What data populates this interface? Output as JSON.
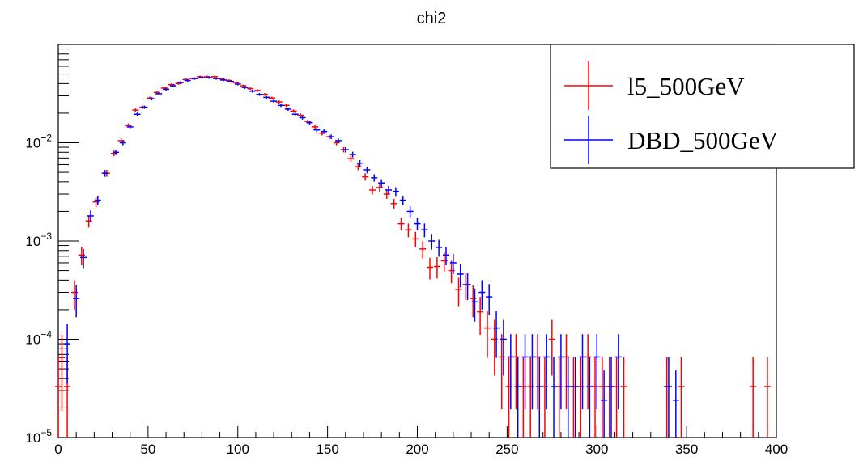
{
  "chart_data": {
    "type": "scatter",
    "title": "chi2",
    "xlabel": "",
    "ylabel": "",
    "xlim": [
      0,
      400
    ],
    "ylim": [
      1e-05,
      0.1
    ],
    "yscale": "log",
    "x_ticks": [
      0,
      50,
      100,
      150,
      200,
      250,
      300,
      350,
      400
    ],
    "y_ticks": [
      {
        "value": 1e-05,
        "base": "10",
        "exp": "−5"
      },
      {
        "value": 0.0001,
        "base": "10",
        "exp": "−4"
      },
      {
        "value": 0.001,
        "base": "10",
        "exp": "−3"
      },
      {
        "value": 0.01,
        "base": "10",
        "exp": "−2"
      }
    ],
    "legend_position": "top-right",
    "series": [
      {
        "name": "l5_500GeV",
        "color": "#ff0000",
        "points": [
          [
            0,
            3.3e-05
          ],
          [
            2,
            6.5e-05
          ],
          [
            5,
            3.3e-05
          ],
          [
            9,
            0.0003
          ],
          [
            13,
            0.00072
          ],
          [
            17,
            0.0016
          ],
          [
            21,
            0.0025
          ],
          [
            27,
            0.0049
          ],
          [
            31,
            0.0078
          ],
          [
            35,
            0.0105
          ],
          [
            39,
            0.015
          ],
          [
            43,
            0.0215
          ],
          [
            47,
            0.023
          ],
          [
            51,
            0.0285
          ],
          [
            55,
            0.0325
          ],
          [
            59,
            0.036
          ],
          [
            63,
            0.039
          ],
          [
            67,
            0.04
          ],
          [
            71,
            0.044
          ],
          [
            75,
            0.045
          ],
          [
            79,
            0.047
          ],
          [
            83,
            0.047
          ],
          [
            87,
            0.047
          ],
          [
            91,
            0.0445
          ],
          [
            95,
            0.043
          ],
          [
            99,
            0.041
          ],
          [
            103,
            0.038
          ],
          [
            107,
            0.0355
          ],
          [
            111,
            0.034
          ],
          [
            115,
            0.031
          ],
          [
            119,
            0.0285
          ],
          [
            123,
            0.026
          ],
          [
            127,
            0.024
          ],
          [
            131,
            0.021
          ],
          [
            135,
            0.019
          ],
          [
            139,
            0.0165
          ],
          [
            143,
            0.0145
          ],
          [
            147,
            0.0125
          ],
          [
            151,
            0.0115
          ],
          [
            155,
            0.01
          ],
          [
            159,
            0.0085
          ],
          [
            163,
            0.0069
          ],
          [
            167,
            0.0057
          ],
          [
            171,
            0.0045
          ],
          [
            175,
            0.0033
          ],
          [
            179,
            0.0035
          ],
          [
            183,
            0.003
          ],
          [
            187,
            0.0024
          ],
          [
            191,
            0.0015
          ],
          [
            195,
            0.0013
          ],
          [
            199,
            0.00105
          ],
          [
            203,
            0.00083
          ],
          [
            207,
            0.00054
          ],
          [
            211,
            0.00055
          ],
          [
            215,
            0.00063
          ],
          [
            219,
            0.0005
          ],
          [
            223,
            0.00032
          ],
          [
            227,
            0.00036
          ],
          [
            231,
            0.00026
          ],
          [
            235,
            0.00019
          ],
          [
            239,
            0.00013
          ],
          [
            243,
            0.0001
          ],
          [
            247,
            6.6e-05
          ],
          [
            251,
            3.3e-05
          ],
          [
            255,
            6.6e-05
          ],
          [
            259,
            3.3e-05
          ],
          [
            263,
            3.3e-05
          ],
          [
            267,
            6.6e-05
          ],
          [
            271,
            3.3e-05
          ],
          [
            275,
            0.0001
          ],
          [
            279,
            3.3e-05
          ],
          [
            283,
            6.6e-05
          ],
          [
            287,
            3.3e-05
          ],
          [
            291,
            3.3e-05
          ],
          [
            295,
            6.6e-05
          ],
          [
            299,
            3.3e-05
          ],
          [
            303,
            3.3e-05
          ],
          [
            307,
            3.3e-05
          ],
          [
            311,
            3.3e-05
          ],
          [
            315,
            3.3e-05
          ],
          [
            339,
            3.3e-05
          ],
          [
            347,
            3.3e-05
          ],
          [
            387,
            3.3e-05
          ],
          [
            395,
            3.3e-05
          ]
        ]
      },
      {
        "name": "DBD_500GeV",
        "color": "#0000ff",
        "points": [
          [
            5,
            9e-05
          ],
          [
            10,
            0.00026
          ],
          [
            14,
            0.00068
          ],
          [
            18,
            0.0018
          ],
          [
            22,
            0.0026
          ],
          [
            26,
            0.0049
          ],
          [
            32,
            0.008
          ],
          [
            36,
            0.01
          ],
          [
            40,
            0.0145
          ],
          [
            44,
            0.0195
          ],
          [
            48,
            0.023
          ],
          [
            52,
            0.028
          ],
          [
            56,
            0.0315
          ],
          [
            60,
            0.035
          ],
          [
            64,
            0.038
          ],
          [
            68,
            0.041
          ],
          [
            72,
            0.043
          ],
          [
            76,
            0.045
          ],
          [
            80,
            0.046
          ],
          [
            84,
            0.046
          ],
          [
            88,
            0.045
          ],
          [
            92,
            0.0435
          ],
          [
            96,
            0.042
          ],
          [
            100,
            0.0395
          ],
          [
            104,
            0.0365
          ],
          [
            108,
            0.0335
          ],
          [
            112,
            0.031
          ],
          [
            116,
            0.029
          ],
          [
            120,
            0.0265
          ],
          [
            124,
            0.024
          ],
          [
            128,
            0.022
          ],
          [
            132,
            0.0195
          ],
          [
            136,
            0.018
          ],
          [
            140,
            0.016
          ],
          [
            144,
            0.0135
          ],
          [
            148,
            0.013
          ],
          [
            152,
            0.0115
          ],
          [
            156,
            0.0105
          ],
          [
            160,
            0.0085
          ],
          [
            164,
            0.0076
          ],
          [
            168,
            0.0062
          ],
          [
            172,
            0.0053
          ],
          [
            176,
            0.0044
          ],
          [
            180,
            0.0039
          ],
          [
            184,
            0.0033
          ],
          [
            188,
            0.0032
          ],
          [
            192,
            0.0026
          ],
          [
            196,
            0.002
          ],
          [
            200,
            0.0015
          ],
          [
            204,
            0.0013
          ],
          [
            208,
            0.001
          ],
          [
            212,
            0.00086
          ],
          [
            216,
            0.00072
          ],
          [
            220,
            0.0006
          ],
          [
            224,
            0.00046
          ],
          [
            228,
            0.00036
          ],
          [
            232,
            0.00024
          ],
          [
            236,
            0.0003
          ],
          [
            240,
            0.00027
          ],
          [
            244,
            0.00013
          ],
          [
            248,
            0.0001
          ],
          [
            252,
            6.6e-05
          ],
          [
            256,
            3.3e-05
          ],
          [
            260,
            6.6e-05
          ],
          [
            264,
            6.6e-05
          ],
          [
            268,
            3.3e-05
          ],
          [
            272,
            6.6e-05
          ],
          [
            276,
            3.3e-05
          ],
          [
            280,
            6.6e-05
          ],
          [
            284,
            3.3e-05
          ],
          [
            288,
            3.3e-05
          ],
          [
            292,
            6.6e-05
          ],
          [
            296,
            3.3e-05
          ],
          [
            300,
            6.6e-05
          ],
          [
            304,
            2.4e-05
          ],
          [
            308,
            3.3e-05
          ],
          [
            312,
            6.6e-05
          ],
          [
            340,
            3.3e-05
          ],
          [
            344,
            2.4e-05
          ]
        ]
      }
    ]
  }
}
